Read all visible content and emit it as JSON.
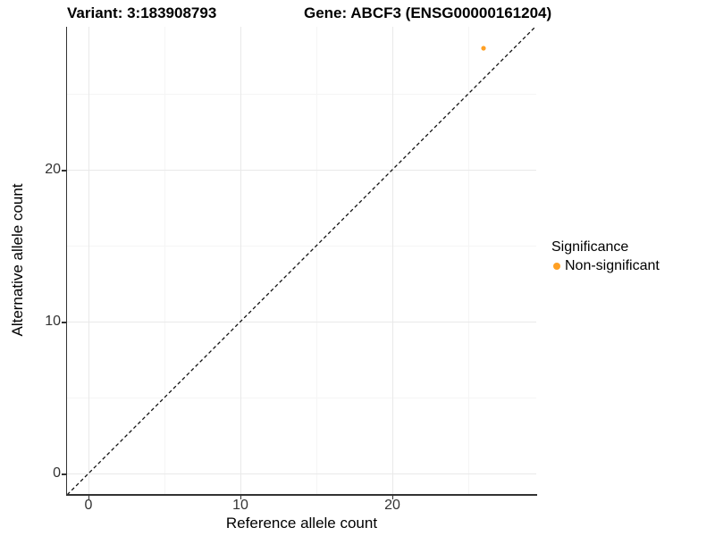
{
  "titles": {
    "variant": "Variant: 3:183908793",
    "gene": "Gene: ABCF3 (ENSG00000161204)"
  },
  "chart_data": {
    "type": "scatter",
    "title_left": "Variant: 3:183908793",
    "title_right": "Gene: ABCF3 (ENSG00000161204)",
    "xlabel": "Reference allele count",
    "ylabel": "Alternative allele count",
    "xlim": [
      -1.4,
      29.4
    ],
    "ylim": [
      -1.4,
      29.4
    ],
    "x_major_ticks": [
      0,
      10,
      20
    ],
    "y_major_ticks": [
      0,
      10,
      20
    ],
    "x_minor_ticks": [
      5,
      15,
      25
    ],
    "y_minor_ticks": [
      5,
      15,
      25
    ],
    "grid": true,
    "points": [
      {
        "x": 26,
        "y": 28,
        "series": "Non-significant",
        "color": "#FFA024",
        "radius": 2.6
      }
    ],
    "reference_line": {
      "slope": 1,
      "intercept": 0,
      "style": "dashed",
      "color": "#111111",
      "dash": "4 3"
    },
    "legend": {
      "title": "Significance",
      "position": "right",
      "entries": [
        {
          "label": "Non-significant",
          "color": "#FFA024"
        }
      ]
    }
  },
  "colors": {
    "axis_line": "#333333",
    "grid_major": "#e9e9e9",
    "grid_minor": "#f5f5f5",
    "tick_text": "#333333",
    "point_orange": "#FFA024"
  }
}
